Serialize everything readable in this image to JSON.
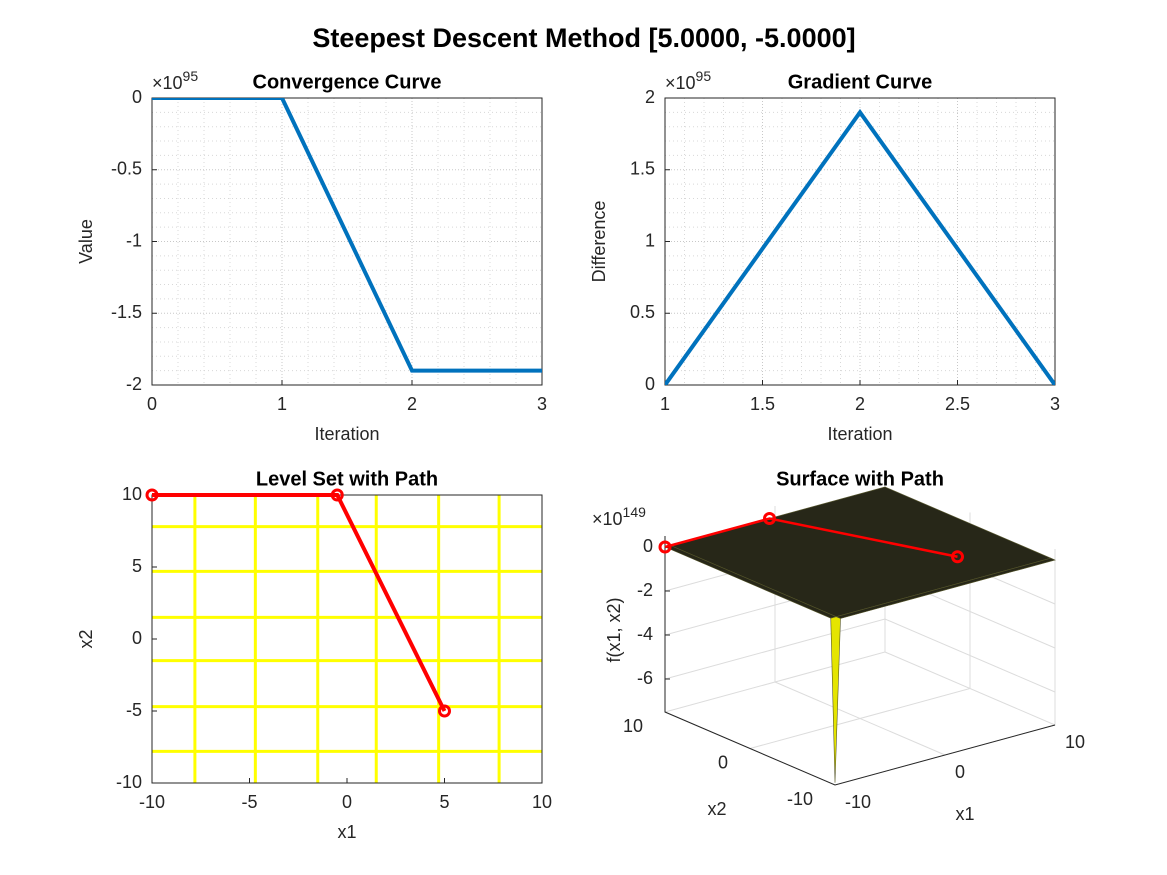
{
  "title": "Steepest Descent Method [5.0000, -5.0000]",
  "chart_data": [
    {
      "type": "line",
      "title": "Convergence Curve",
      "x_label": "Iteration",
      "y_label": "Value",
      "y_scale_label": {
        "base": "×10",
        "exponent": "95"
      },
      "x": [
        0,
        1,
        2,
        3
      ],
      "series": [
        {
          "color": "#0072bd",
          "values": [
            0,
            0,
            -1.9,
            -1.9
          ]
        }
      ],
      "xlim": [
        0,
        3
      ],
      "xticks": [
        0,
        1,
        2,
        3
      ],
      "ylim": [
        -2,
        0
      ],
      "yticks": [
        -2,
        -1.5,
        -1,
        -0.5,
        0
      ],
      "grid": true,
      "minor_grid": true
    },
    {
      "type": "line",
      "title": "Gradient Curve",
      "x_label": "Iteration",
      "y_label": "Difference",
      "y_scale_label": {
        "base": "×10",
        "exponent": "95"
      },
      "x": [
        1,
        2,
        3
      ],
      "series": [
        {
          "color": "#0072bd",
          "values": [
            0,
            1.9,
            0
          ]
        }
      ],
      "xlim": [
        1,
        3
      ],
      "xticks": [
        1,
        1.5,
        2,
        2.5,
        3
      ],
      "ylim": [
        0,
        2
      ],
      "yticks": [
        0,
        0.5,
        1,
        1.5,
        2
      ],
      "grid": true,
      "minor_grid": true
    },
    {
      "type": "contour",
      "title": "Level Set with Path",
      "x_label": "x1",
      "y_label": "x2",
      "x": [
        -10,
        -0.5,
        5
      ],
      "series": [
        {
          "color": "#ff0000",
          "values": [
            10,
            10,
            -5
          ]
        }
      ],
      "contour_color": "#ffff00",
      "contour_x": [
        -7.8,
        -4.7,
        -1.5,
        1.5,
        4.7,
        7.8
      ],
      "contour_y": [
        -7.8,
        -4.7,
        -1.5,
        1.5,
        4.7,
        7.8
      ],
      "xlim": [
        -10,
        10
      ],
      "xticks": [
        -10,
        -5,
        0,
        5,
        10
      ],
      "ylim": [
        -10,
        10
      ],
      "yticks": [
        -10,
        -5,
        0,
        5,
        10
      ]
    },
    {
      "type": "surface",
      "title": "Surface with Path",
      "x_label": "x1",
      "y_label": "x2",
      "z_label": "f(x1, x2)",
      "z_scale_label": {
        "base": "×10",
        "exponent": "149"
      },
      "xlim": [
        -10,
        10
      ],
      "xticks": [
        -10,
        0,
        10
      ],
      "ylim": [
        -10,
        10
      ],
      "yticks": [
        -10,
        0,
        10
      ],
      "zlim": [
        -7.5,
        0.5
      ],
      "zticks": [
        -6,
        -4,
        -2,
        0
      ],
      "grid": true,
      "surface": {
        "x": [
          -10,
          -9.5,
          10
        ],
        "y": [
          -10,
          -9.5,
          10
        ],
        "z": [
          [
            -7.4,
            0,
            0
          ],
          [
            0,
            0,
            0
          ],
          [
            0,
            0,
            0
          ]
        ],
        "color_low": "#e8e800",
        "color_high": "#1a1a1a",
        "edge_color": "#55552a"
      },
      "path": {
        "color": "#ff0000",
        "x": [
          -10,
          -0.5,
          5
        ],
        "y": [
          10,
          10,
          -5
        ],
        "z": [
          0,
          0,
          0
        ]
      }
    }
  ]
}
